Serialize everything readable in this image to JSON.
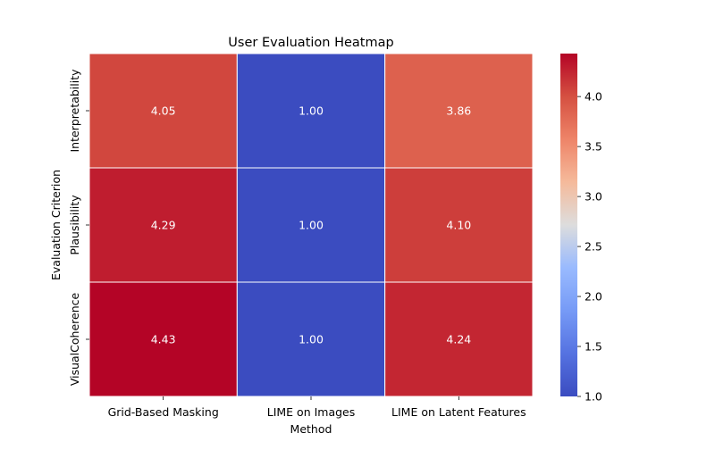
{
  "chart_data": {
    "type": "heatmap",
    "title": "User Evaluation Heatmap",
    "xlabel": "Method",
    "ylabel": "Evaluation Criterion",
    "x_categories": [
      "Grid-Based Masking",
      "LIME on Images",
      "LIME on Latent Features"
    ],
    "y_categories": [
      "Interpretability",
      "Plausibility",
      "VisualCoherence"
    ],
    "values": [
      [
        4.05,
        1.0,
        3.86
      ],
      [
        4.29,
        1.0,
        4.1
      ],
      [
        4.43,
        1.0,
        4.24
      ]
    ],
    "cell_labels": [
      [
        "4.05",
        "1.00",
        "3.86"
      ],
      [
        "4.29",
        "1.00",
        "4.10"
      ],
      [
        "4.43",
        "1.00",
        "4.24"
      ]
    ],
    "colormap": "coolwarm",
    "color_range": [
      1.0,
      4.43
    ],
    "colorbar_ticks": [
      1.0,
      1.5,
      2.0,
      2.5,
      3.0,
      3.5,
      4.0
    ],
    "colorbar_tick_labels": [
      "1.0",
      "1.5",
      "2.0",
      "2.5",
      "3.0",
      "3.5",
      "4.0"
    ],
    "colors": {
      "low": "#3b4cc0",
      "mid": "#dddddd",
      "high": "#b40426",
      "cell_text": "#ffffff",
      "grid_line": "#ffffff"
    }
  }
}
